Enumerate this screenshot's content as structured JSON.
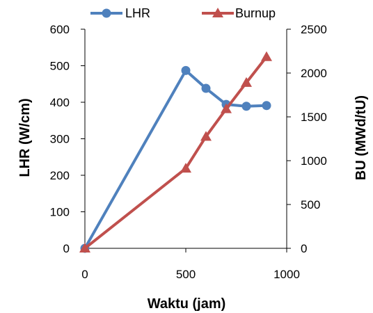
{
  "chart_data": {
    "type": "line",
    "title": "",
    "xlabel": "Waktu (jam)",
    "ylabel": "LHR (W/cm)",
    "y2label": "BU (MWd/tU)",
    "xlim": [
      0,
      1000
    ],
    "ylim": [
      0,
      600
    ],
    "y2lim": [
      0,
      2500
    ],
    "x_ticks": [
      0,
      500,
      1000
    ],
    "y_ticks": [
      0,
      100,
      200,
      300,
      400,
      500,
      600
    ],
    "y2_ticks": [
      0,
      500,
      1000,
      1500,
      2000,
      2500
    ],
    "grid": false,
    "legend_position": "top",
    "series": [
      {
        "name": "LHR",
        "axis": "left",
        "marker": "circle",
        "color": "#4f81bd",
        "x": [
          0,
          500,
          600,
          700,
          800,
          900
        ],
        "values": [
          0,
          487,
          438,
          394,
          389,
          391
        ]
      },
      {
        "name": "Burnup",
        "axis": "right",
        "marker": "triangle",
        "color": "#c0504d",
        "x": [
          0,
          500,
          600,
          700,
          800,
          900
        ],
        "values": [
          0,
          912,
          1275,
          1590,
          1890,
          2185
        ]
      }
    ]
  }
}
